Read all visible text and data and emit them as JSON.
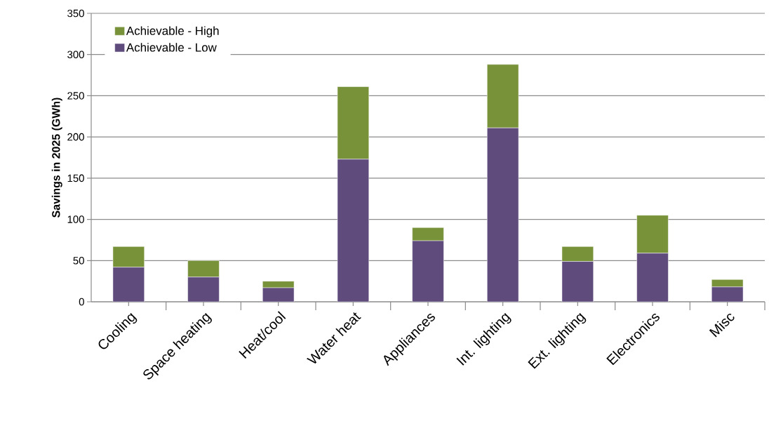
{
  "chart_data": {
    "type": "bar",
    "stacked": true,
    "ylabel": "Savings in 2025  (GWh)",
    "categories": [
      "Cooling",
      "Space heating",
      "Heat/cool",
      "Water heat",
      "Appliances",
      "Int. lighting",
      "Ext. lighting",
      "Electronics",
      "Misc"
    ],
    "series": [
      {
        "name": "Achievable - Low",
        "color": "#5f4b7c",
        "values": [
          42,
          30,
          17,
          173,
          74,
          211,
          49,
          59,
          18
        ]
      },
      {
        "name": "Achievable - High",
        "color": "#78923a",
        "values": [
          25,
          20,
          8,
          88,
          16,
          77,
          18,
          46,
          9
        ]
      }
    ],
    "ylim": [
      0,
      350
    ],
    "yticks": [
      0,
      50,
      100,
      150,
      200,
      250,
      300,
      350
    ],
    "grid": "y",
    "legend": "top left"
  }
}
